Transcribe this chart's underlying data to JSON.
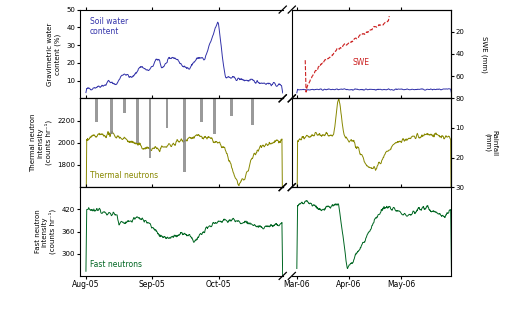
{
  "top_panel": {
    "ylim": [
      0,
      50
    ],
    "yticks": [
      10,
      20,
      30,
      40,
      50
    ],
    "ylabel": "Gravimetric water\ncontent (%)",
    "right_ylim": [
      80,
      0
    ],
    "right_yticks": [
      80,
      60,
      40,
      20
    ],
    "right_ylabel": "SWE (mm)",
    "swc_color": "#3333aa",
    "swe_color": "#cc2222",
    "label_swc": "Soil water\ncontent",
    "label_swe": "SWE"
  },
  "middle_panel": {
    "ylim": [
      1600,
      2400
    ],
    "yticks": [
      1800,
      2000,
      2200
    ],
    "ylabel": "Thermal neutron\nintensity\n(counts hr⁻¹)",
    "right_ylim": [
      30,
      0
    ],
    "right_yticks": [
      30,
      20,
      10
    ],
    "right_ylabel": "Rainfall\n(mm)",
    "color": "#888800",
    "label": "Thermal neutrons",
    "rainfall_color": "#888888"
  },
  "bottom_panel": {
    "ylim": [
      240,
      480
    ],
    "yticks": [
      300,
      360,
      420
    ],
    "ylabel": "Fast neutron\nintensity\n(counts hr⁻¹)",
    "color": "#006622",
    "label": "Fast neutrons"
  },
  "left_xlabels": [
    "Aug-05",
    "Sep-05",
    "Oct-05"
  ],
  "right_xlabels": [
    "Mar-06",
    "Apr-06",
    "May-06"
  ],
  "figsize": [
    5.13,
    3.19
  ],
  "dpi": 100
}
